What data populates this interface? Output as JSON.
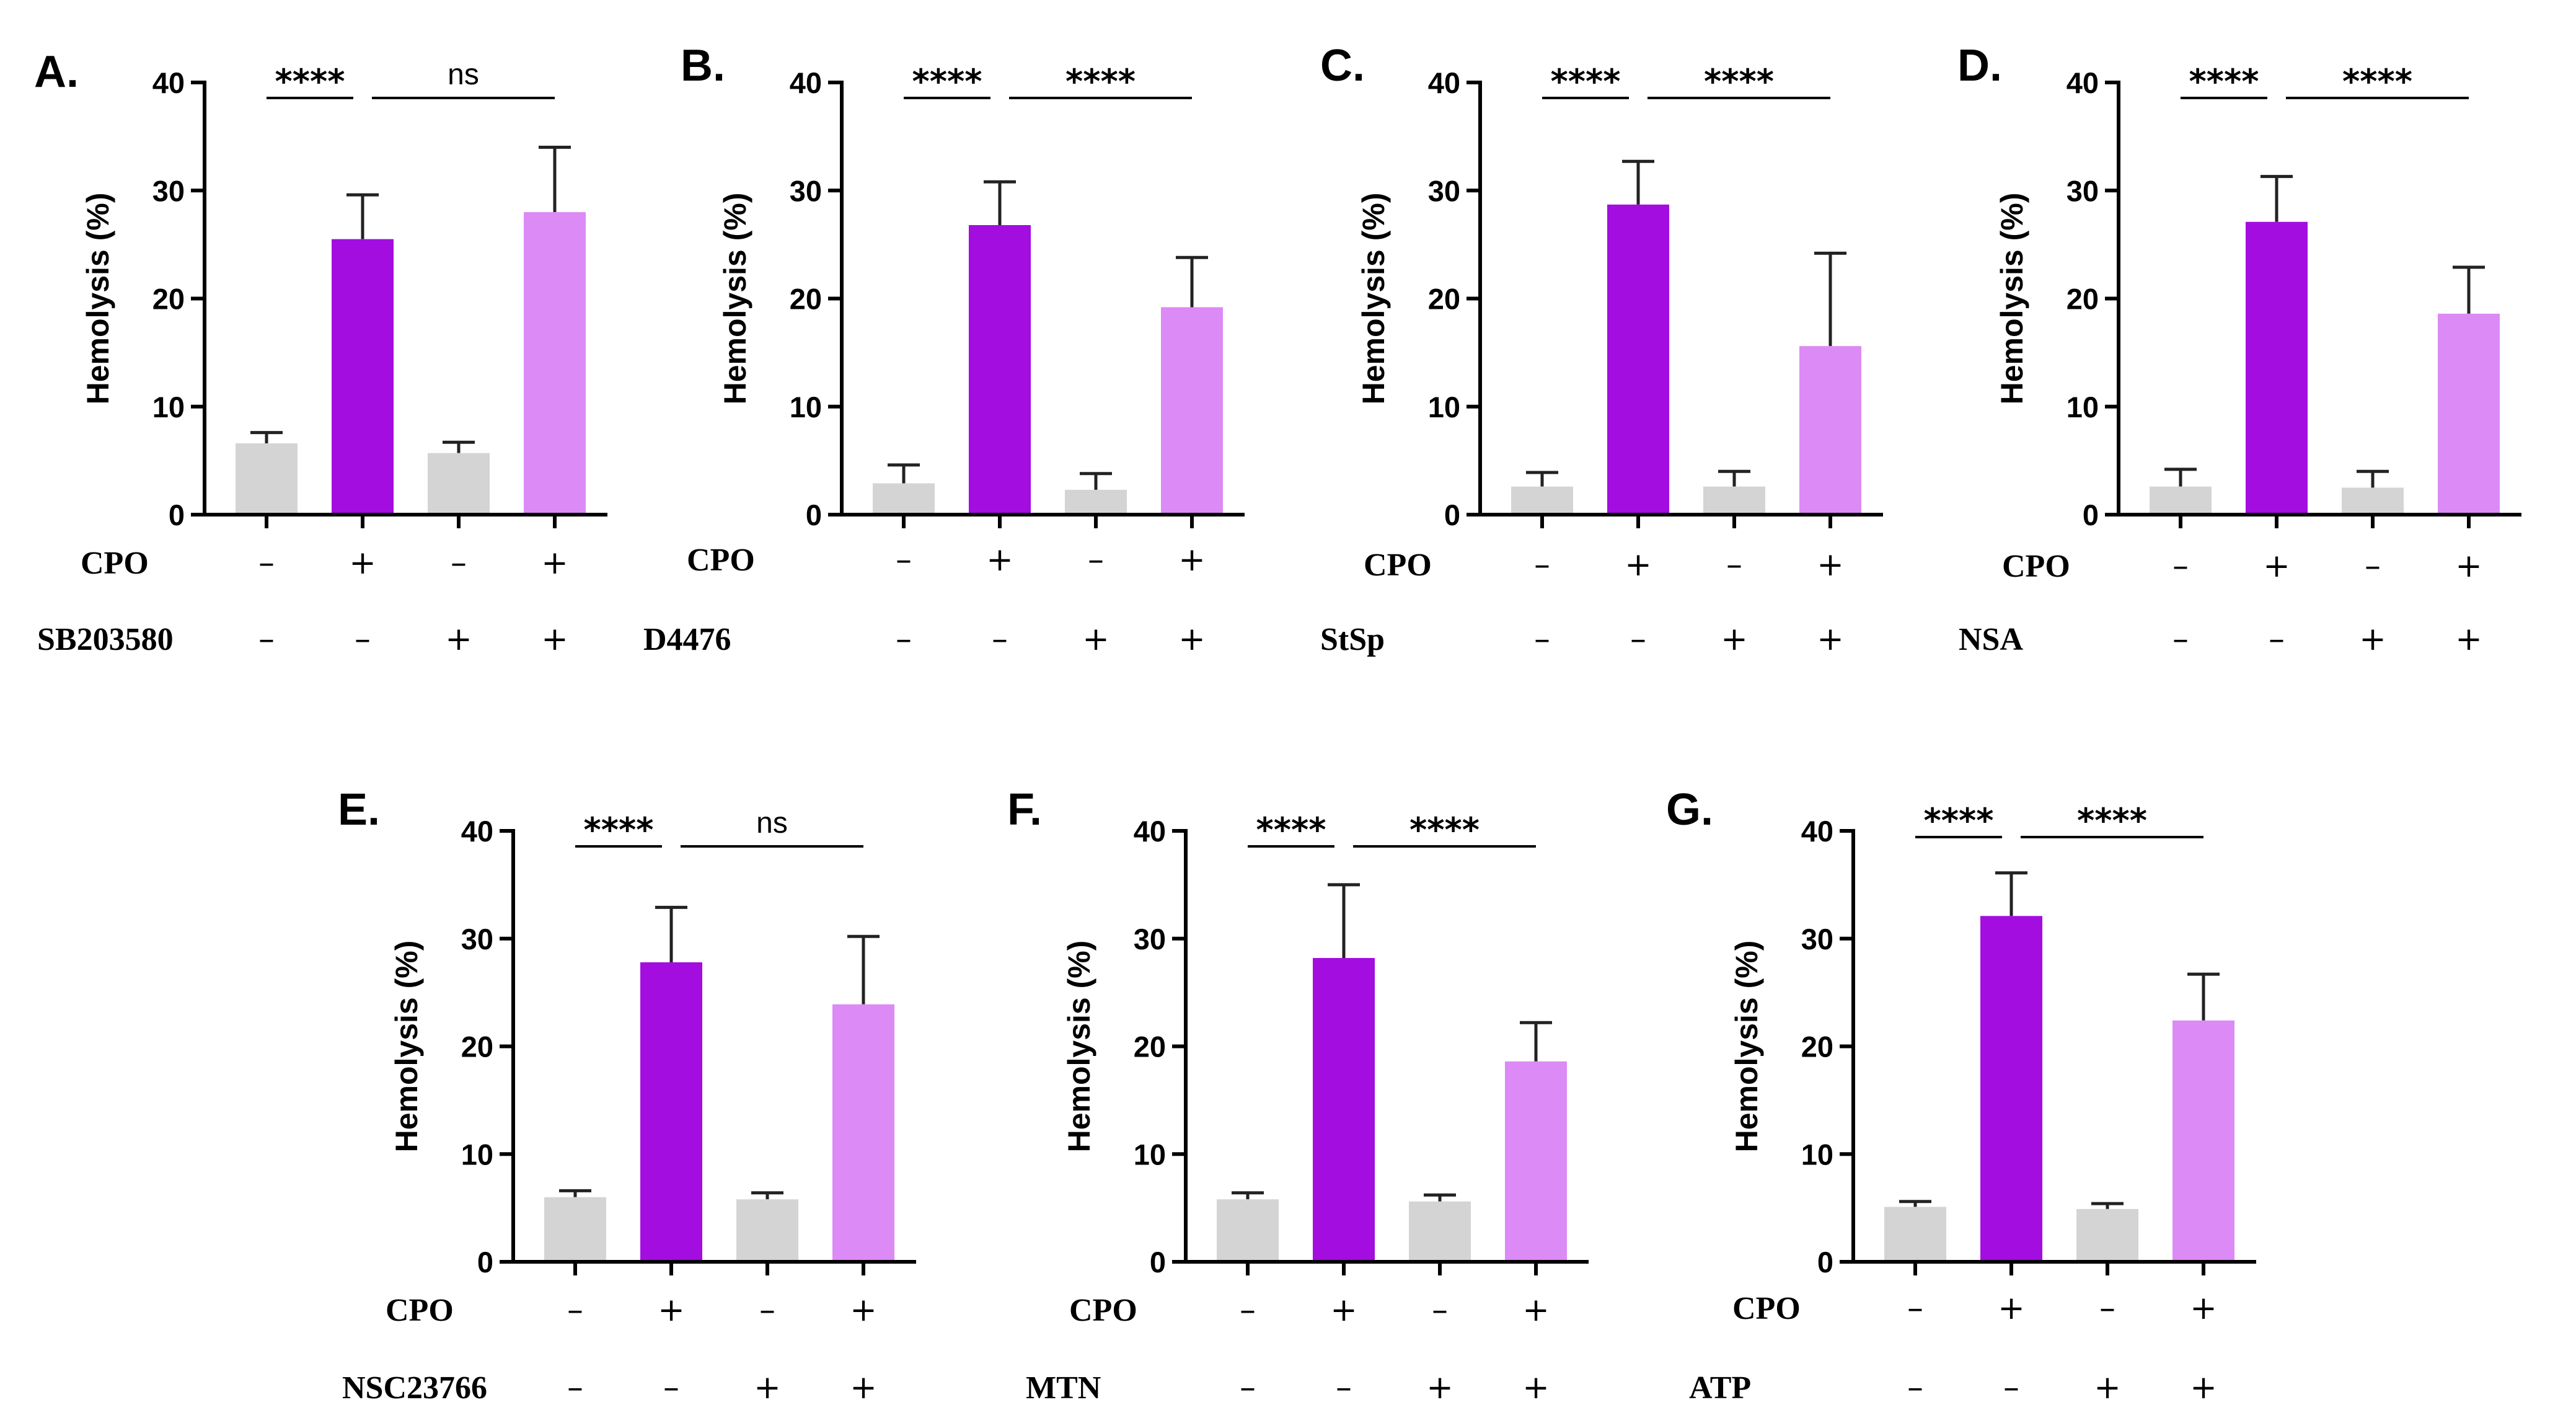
{
  "chart_data": [
    {
      "panel": "A.",
      "type": "bar",
      "ylabel": "Hemolysis (%)",
      "ylim": [
        0,
        40
      ],
      "yticks": [
        "0",
        "10",
        "20",
        "30",
        "40"
      ],
      "values": [
        6.6,
        25.5,
        5.7,
        28.0
      ],
      "errors": [
        1.0,
        4.1,
        1.0,
        6.0
      ],
      "colors": [
        "#d4d4d4",
        "#a30de0",
        "#d4d4d4",
        "#dc8af5"
      ],
      "rows": [
        {
          "label": "CPO",
          "signs": [
            "–",
            "+",
            "–",
            "+"
          ]
        },
        {
          "label": "SB203580",
          "signs": [
            "–",
            "–",
            "+",
            "+"
          ]
        }
      ],
      "significance": [
        {
          "from": 0,
          "to": 1,
          "label": "****"
        },
        {
          "from": 1,
          "to": 3,
          "label": "ns"
        }
      ]
    },
    {
      "panel": "B.",
      "type": "bar",
      "ylabel": "Hemolysis (%)",
      "ylim": [
        0,
        40
      ],
      "yticks": [
        "0",
        "10",
        "20",
        "30",
        "40"
      ],
      "values": [
        2.9,
        26.8,
        2.3,
        19.2
      ],
      "errors": [
        1.7,
        4.0,
        1.5,
        4.6
      ],
      "colors": [
        "#d4d4d4",
        "#a30de0",
        "#d4d4d4",
        "#dc8af5"
      ],
      "rows": [
        {
          "label": "CPO",
          "signs": [
            "–",
            "+",
            "–",
            "+"
          ]
        },
        {
          "label": "D4476",
          "signs": [
            "–",
            "–",
            "+",
            "+"
          ]
        }
      ],
      "significance": [
        {
          "from": 0,
          "to": 1,
          "label": "****"
        },
        {
          "from": 1,
          "to": 3,
          "label": "****"
        }
      ]
    },
    {
      "panel": "C.",
      "type": "bar",
      "ylabel": "Hemolysis (%)",
      "ylim": [
        0,
        40
      ],
      "yticks": [
        "0",
        "10",
        "20",
        "30",
        "40"
      ],
      "values": [
        2.6,
        28.7,
        2.6,
        15.6
      ],
      "errors": [
        1.3,
        4.0,
        1.4,
        8.6
      ],
      "colors": [
        "#d4d4d4",
        "#a30de0",
        "#d4d4d4",
        "#dc8af5"
      ],
      "rows": [
        {
          "label": "CPO",
          "signs": [
            "–",
            "+",
            "–",
            "+"
          ]
        },
        {
          "label": "StSp",
          "signs": [
            "–",
            "–",
            "+",
            "+"
          ]
        }
      ],
      "significance": [
        {
          "from": 0,
          "to": 1,
          "label": "****"
        },
        {
          "from": 1,
          "to": 3,
          "label": "****"
        }
      ]
    },
    {
      "panel": "D.",
      "type": "bar",
      "ylabel": "Hemolysis (%)",
      "ylim": [
        0,
        40
      ],
      "yticks": [
        "0",
        "10",
        "20",
        "30",
        "40"
      ],
      "values": [
        2.6,
        27.1,
        2.5,
        18.6
      ],
      "errors": [
        1.6,
        4.2,
        1.5,
        4.3
      ],
      "colors": [
        "#d4d4d4",
        "#a30de0",
        "#d4d4d4",
        "#dc8af5"
      ],
      "rows": [
        {
          "label": "CPO",
          "signs": [
            "–",
            "+",
            "–",
            "+"
          ]
        },
        {
          "label": "NSA",
          "signs": [
            "–",
            "–",
            "+",
            "+"
          ]
        }
      ],
      "significance": [
        {
          "from": 0,
          "to": 1,
          "label": "****"
        },
        {
          "from": 1,
          "to": 3,
          "label": "****"
        }
      ]
    },
    {
      "panel": "E.",
      "type": "bar",
      "ylabel": "Hemolysis (%)",
      "ylim": [
        0,
        40
      ],
      "yticks": [
        "0",
        "10",
        "20",
        "30",
        "40"
      ],
      "values": [
        6.0,
        27.8,
        5.8,
        23.9
      ],
      "errors": [
        0.6,
        5.1,
        0.6,
        6.3
      ],
      "colors": [
        "#d4d4d4",
        "#a30de0",
        "#d4d4d4",
        "#dc8af5"
      ],
      "rows": [
        {
          "label": "CPO",
          "signs": [
            "–",
            "+",
            "–",
            "+"
          ]
        },
        {
          "label": "NSC23766",
          "signs": [
            "–",
            "–",
            "+",
            "+"
          ]
        }
      ],
      "significance": [
        {
          "from": 0,
          "to": 1,
          "label": "****"
        },
        {
          "from": 1,
          "to": 3,
          "label": "ns"
        }
      ]
    },
    {
      "panel": "F.",
      "type": "bar",
      "ylabel": "Hemolysis (%)",
      "ylim": [
        0,
        40
      ],
      "yticks": [
        "0",
        "10",
        "20",
        "30",
        "40"
      ],
      "values": [
        5.8,
        28.2,
        5.6,
        18.6
      ],
      "errors": [
        0.6,
        6.8,
        0.6,
        3.6
      ],
      "colors": [
        "#d4d4d4",
        "#a30de0",
        "#d4d4d4",
        "#dc8af5"
      ],
      "rows": [
        {
          "label": "CPO",
          "signs": [
            "–",
            "+",
            "–",
            "+"
          ]
        },
        {
          "label": "MTN",
          "signs": [
            "–",
            "–",
            "+",
            "+"
          ]
        }
      ],
      "significance": [
        {
          "from": 0,
          "to": 1,
          "label": "****"
        },
        {
          "from": 1,
          "to": 3,
          "label": "****"
        }
      ]
    },
    {
      "panel": "G.",
      "type": "bar",
      "ylabel": "Hemolysis (%)",
      "ylim": [
        0,
        40
      ],
      "yticks": [
        "0",
        "10",
        "20",
        "30",
        "40"
      ],
      "values": [
        5.1,
        32.1,
        4.9,
        22.4
      ],
      "errors": [
        0.5,
        4.0,
        0.5,
        4.3
      ],
      "colors": [
        "#d4d4d4",
        "#a30de0",
        "#d4d4d4",
        "#dc8af5"
      ],
      "rows": [
        {
          "label": "CPO",
          "signs": [
            "–",
            "+",
            "–",
            "+"
          ]
        },
        {
          "label": "ATP",
          "signs": [
            "–",
            "–",
            "+",
            "+"
          ]
        }
      ],
      "significance": [
        {
          "from": 0,
          "to": 1,
          "label": "****"
        },
        {
          "from": 1,
          "to": 3,
          "label": "****"
        }
      ]
    }
  ]
}
